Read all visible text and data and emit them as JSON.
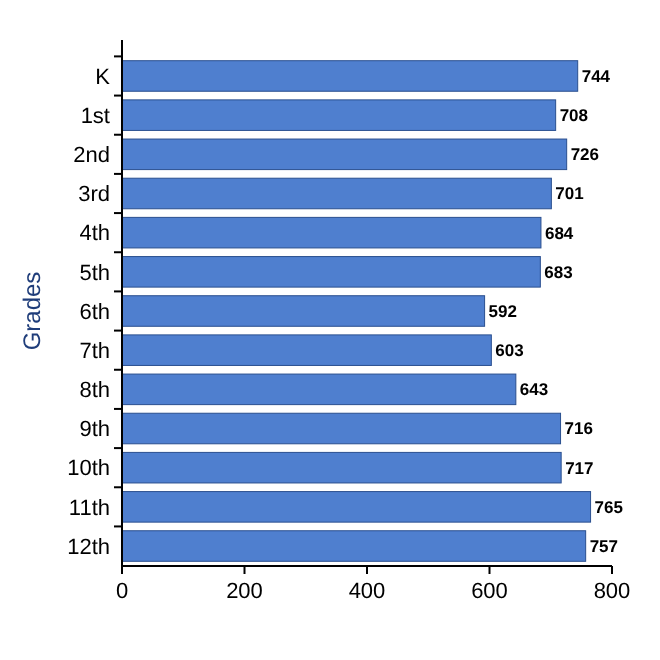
{
  "chart_data": {
    "type": "bar",
    "orientation": "horizontal",
    "ylabel": "Grades",
    "categories": [
      "K",
      "1st",
      "2nd",
      "3rd",
      "4th",
      "5th",
      "6th",
      "7th",
      "8th",
      "9th",
      "10th",
      "11th",
      "12th"
    ],
    "values": [
      744,
      708,
      726,
      701,
      684,
      683,
      592,
      603,
      643,
      716,
      717,
      765,
      757
    ],
    "color": "#4f7fcf",
    "xlim": [
      0,
      800
    ],
    "xticks": [
      0,
      200,
      400,
      600,
      800
    ],
    "data_labels": true,
    "grid": false
  }
}
